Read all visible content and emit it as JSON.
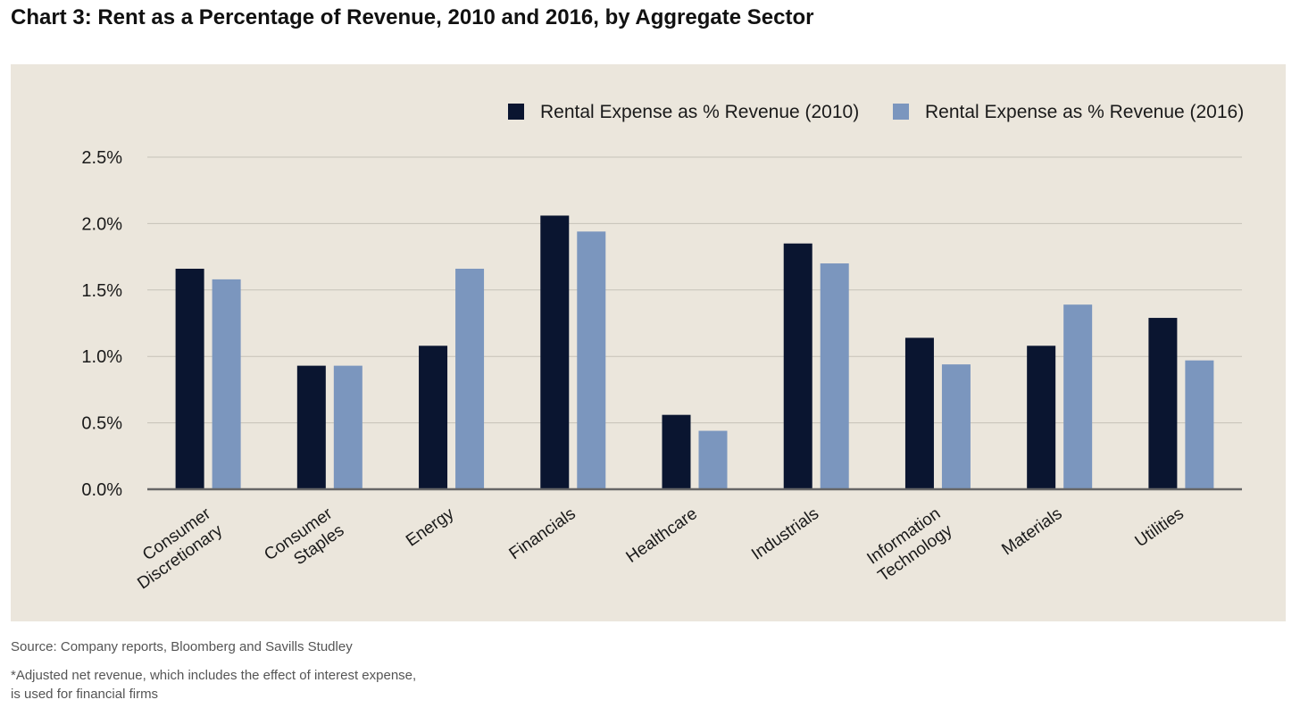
{
  "title": "Chart 3: Rent as a Percentage of Revenue, 2010 and 2016, by Aggregate Sector",
  "footnotes": {
    "source": "Source: Company reports, Bloomberg and Savills Studley",
    "revenue_note": "*Adjusted net revenue, which includes the effect of interest expense, is used for financial firms"
  },
  "cut_off_text": "",
  "colors": {
    "background": "#ebe6dc",
    "series_2010": "#0a1530",
    "series_2016": "#7b96be",
    "gridline": "#c6c2b8",
    "axis": "#666666"
  },
  "chart_data": {
    "type": "bar",
    "title": "",
    "xlabel": "",
    "ylabel": "",
    "ylim": [
      0,
      2.5
    ],
    "y_ticks": [
      0,
      0.5,
      1.0,
      1.5,
      2.0,
      2.5
    ],
    "y_tick_labels": [
      "0.0%",
      "0.5%",
      "1.0%",
      "1.5%",
      "2.0%",
      "2.5%"
    ],
    "grid": true,
    "legend_position": "top-right",
    "categories": [
      "Consumer Discretionary",
      "Consumer Staples",
      "Energy",
      "Financials",
      "Healthcare",
      "Industrials",
      "Information Technology",
      "Materials",
      "Utilities"
    ],
    "category_label_lines": [
      [
        "Consumer",
        "Discretionary"
      ],
      [
        "Consumer",
        "Staples"
      ],
      [
        "Energy"
      ],
      [
        "Financials"
      ],
      [
        "Healthcare"
      ],
      [
        "Industrials"
      ],
      [
        "Information",
        "Technology"
      ],
      [
        "Materials"
      ],
      [
        "Utilities"
      ]
    ],
    "series": [
      {
        "name": "Rental Expense as % Revenue (2010)",
        "values": [
          1.66,
          0.93,
          1.08,
          2.06,
          0.56,
          1.85,
          1.14,
          1.08,
          1.29
        ]
      },
      {
        "name": "Rental Expense as % Revenue (2016)",
        "values": [
          1.58,
          0.93,
          1.66,
          1.94,
          0.44,
          1.7,
          0.94,
          1.39,
          0.97
        ]
      }
    ]
  }
}
